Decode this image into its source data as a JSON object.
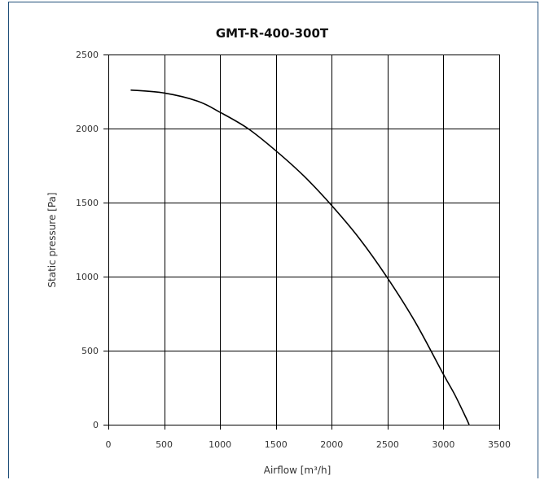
{
  "chart_data": {
    "type": "line",
    "title": "GMT-R-400-300T",
    "xlabel": "Airflow [m³/h]",
    "ylabel": "Static pressure  [Pa]",
    "xlim": [
      0,
      3500
    ],
    "ylim": [
      0,
      2500
    ],
    "xticks": [
      "0",
      "500",
      "1000",
      "1500",
      "2000",
      "2500",
      "3000",
      "3500"
    ],
    "yticks": [
      "0",
      "500",
      "1000",
      "1500",
      "2000",
      "2500"
    ],
    "grid": true,
    "series": [
      {
        "color": "#000000",
        "x": [
          200,
          500,
          800,
          1000,
          1250,
          1500,
          1750,
          2000,
          2250,
          2500,
          2750,
          3000,
          3100,
          3200,
          3230
        ],
        "y": [
          2260,
          2240,
          2185,
          2110,
          2000,
          1850,
          1680,
          1480,
          1255,
          990,
          690,
          340,
          205,
          50,
          0
        ]
      }
    ],
    "colors": {
      "frame": "#1f4e79",
      "grid": "#000000",
      "curve": "#000000"
    }
  }
}
